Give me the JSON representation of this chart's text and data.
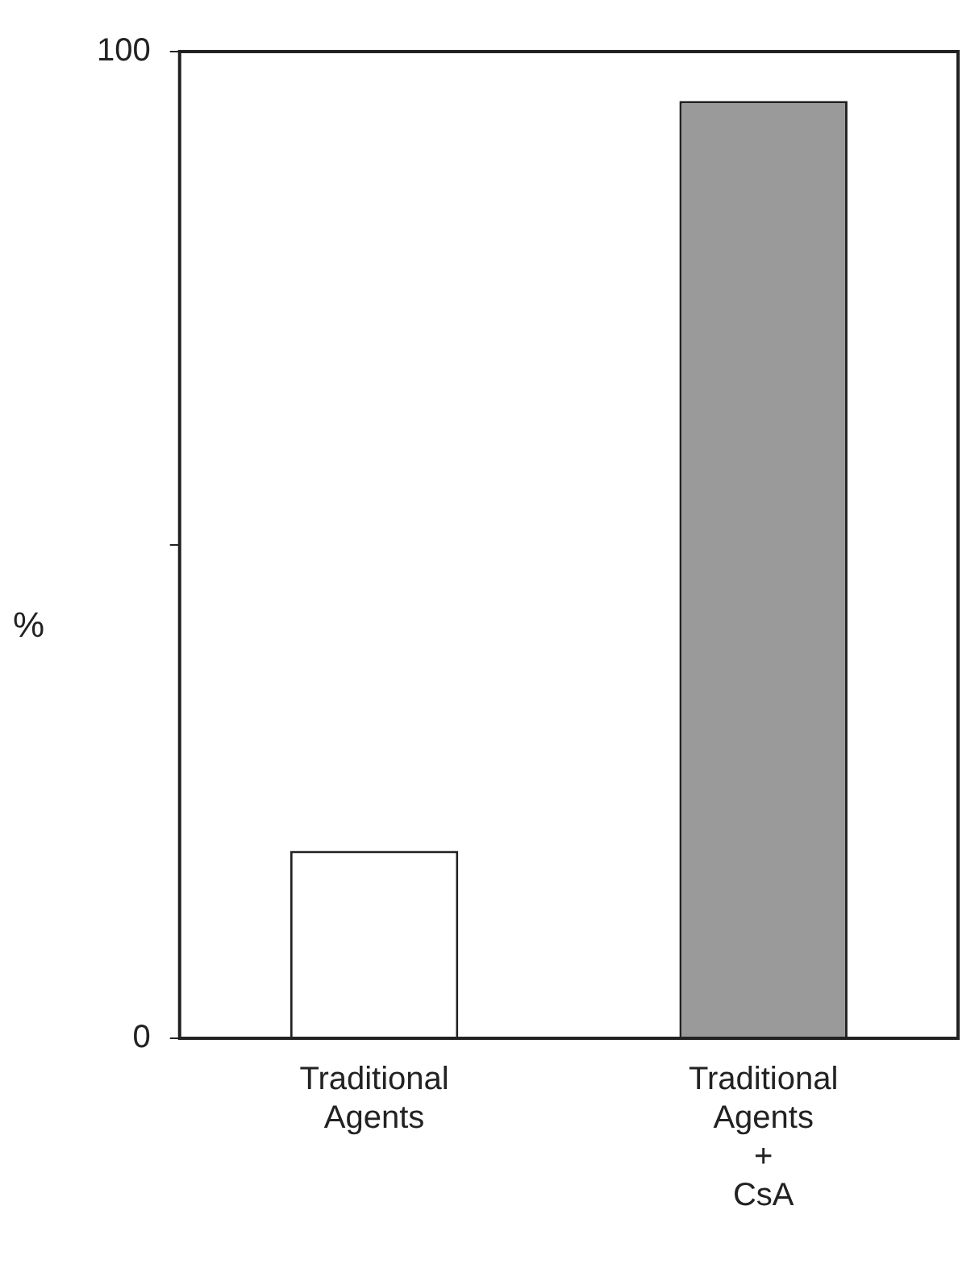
{
  "chart_data": {
    "type": "bar",
    "ylabel": "%",
    "categories": [
      "Traditional Agents",
      "Traditional Agents + CsA"
    ],
    "values": [
      19,
      95
    ],
    "colors": [
      "#ffffff",
      "#9a9a9a"
    ],
    "ylim": [
      0,
      100
    ],
    "yticks": [
      0,
      {
        "value": 50,
        "label": null
      },
      100
    ],
    "grid": false,
    "legend": false
  }
}
